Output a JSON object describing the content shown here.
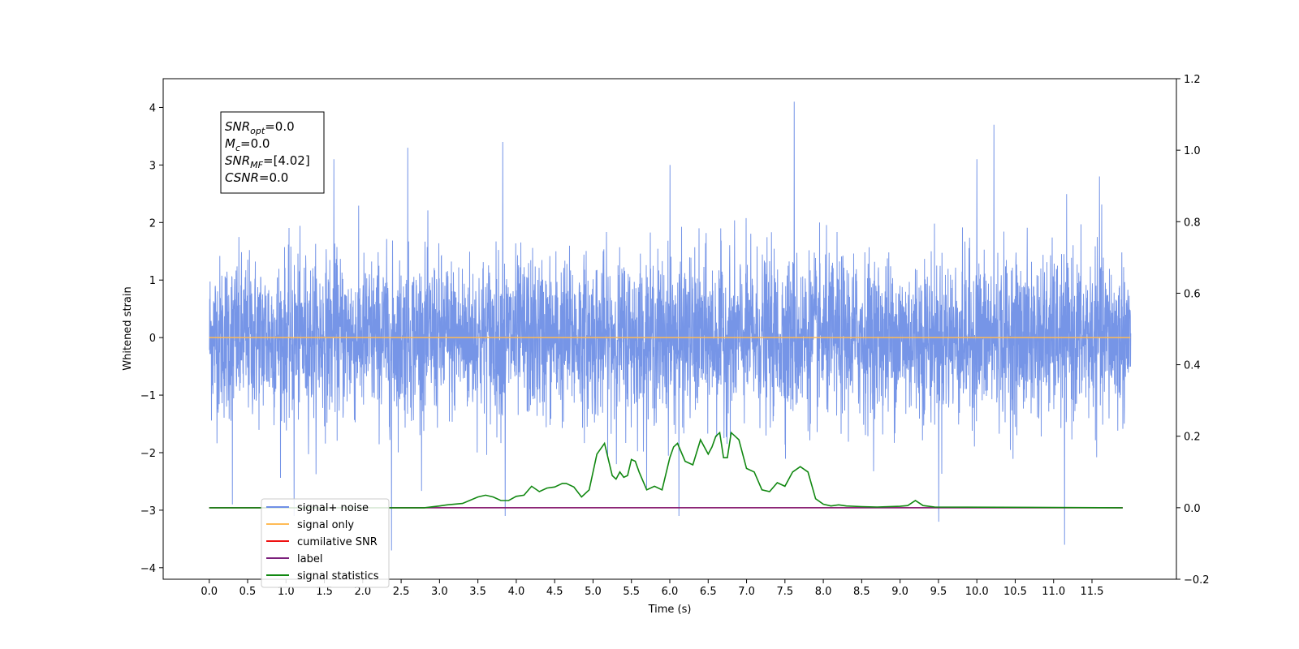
{
  "chart_data": {
    "type": "line",
    "xlabel": "Time (s)",
    "ylabel_left": "Whitened strain",
    "xlim": [
      -0.6,
      12.6
    ],
    "ylim_left": [
      -4.2,
      4.5
    ],
    "ylim_right": [
      -0.2,
      1.2
    ],
    "x_ticks": [
      0.0,
      0.5,
      1.0,
      1.5,
      2.0,
      2.5,
      3.0,
      3.5,
      4.0,
      4.5,
      5.0,
      5.5,
      6.0,
      6.5,
      7.0,
      7.5,
      8.0,
      8.5,
      9.0,
      9.5,
      10.0,
      10.5,
      11.0,
      11.5
    ],
    "x_tick_labels": [
      "0.0",
      "0.5",
      "1.0",
      "1.5",
      "2.0",
      "2.5",
      "3.0",
      "3.5",
      "4.0",
      "4.5",
      "5.0",
      "5.5",
      "6.0",
      "6.5",
      "7.0",
      "7.5",
      "8.0",
      "8.5",
      "9.0",
      "9.5",
      "10.0",
      "10.5",
      "11.0",
      "11.5"
    ],
    "y_left_ticks": [
      4,
      3,
      2,
      1,
      0,
      -1,
      -2,
      -3,
      -4
    ],
    "y_left_tick_labels": [
      "4",
      "3",
      "2",
      "1",
      "0",
      "−1",
      "−2",
      "−3",
      "−4"
    ],
    "y_right_ticks": [
      1.2,
      1.0,
      0.8,
      0.6,
      0.4,
      0.2,
      0.0,
      -0.2
    ],
    "y_right_tick_labels": [
      "1.2",
      "1.0",
      "0.8",
      "0.6",
      "0.4",
      "0.2",
      "0.0",
      "−0.2"
    ],
    "noise_envelope": {
      "x_range": [
        0.0,
        12.0
      ],
      "sigma": 0.7,
      "spikes": [
        [
          7.62,
          4.1
        ],
        [
          10.22,
          3.7
        ],
        [
          3.82,
          3.4
        ],
        [
          2.58,
          3.3
        ],
        [
          1.62,
          3.1
        ],
        [
          10.0,
          3.1
        ],
        [
          6.0,
          3.0
        ],
        [
          11.6,
          2.8
        ],
        [
          11.14,
          -3.6
        ],
        [
          2.37,
          -3.7
        ],
        [
          9.5,
          -3.2
        ],
        [
          3.85,
          -3.1
        ],
        [
          6.12,
          -3.1
        ],
        [
          1.1,
          -3.1
        ],
        [
          0.3,
          -2.9
        ]
      ]
    },
    "series": [
      {
        "name": "signal+ noise",
        "color": "#6f8fe6",
        "axis": "left",
        "kind": "noise"
      },
      {
        "name": "signal only",
        "color": "#ffbb55",
        "axis": "left",
        "kind": "flat",
        "y": 0.0
      },
      {
        "name": "cumilative SNR",
        "color": "#ee1111",
        "axis": "right",
        "kind": "flat",
        "y": 0.0
      },
      {
        "name": "label",
        "color": "#7b1f7b",
        "axis": "right",
        "kind": "flat",
        "y": 0.0
      },
      {
        "name": "signal statistics",
        "color": "#118811",
        "axis": "right",
        "kind": "line",
        "x": [
          0.0,
          2.8,
          3.0,
          3.1,
          3.3,
          3.5,
          3.6,
          3.7,
          3.8,
          3.9,
          4.0,
          4.1,
          4.2,
          4.3,
          4.4,
          4.5,
          4.6,
          4.65,
          4.75,
          4.85,
          4.95,
          5.05,
          5.15,
          5.25,
          5.3,
          5.35,
          5.4,
          5.45,
          5.5,
          5.55,
          5.6,
          5.7,
          5.8,
          5.9,
          6.0,
          6.05,
          6.1,
          6.2,
          6.3,
          6.4,
          6.5,
          6.55,
          6.6,
          6.65,
          6.7,
          6.75,
          6.8,
          6.85,
          6.9,
          7.0,
          7.1,
          7.2,
          7.3,
          7.4,
          7.5,
          7.6,
          7.7,
          7.8,
          7.9,
          8.0,
          8.1,
          8.2,
          8.3,
          8.5,
          8.7,
          9.0,
          9.1,
          9.2,
          9.3,
          9.45,
          11.9
        ],
        "y": [
          0.0,
          0.0,
          0.005,
          0.008,
          0.012,
          0.03,
          0.035,
          0.03,
          0.02,
          0.02,
          0.032,
          0.035,
          0.06,
          0.045,
          0.055,
          0.058,
          0.068,
          0.068,
          0.058,
          0.03,
          0.05,
          0.15,
          0.18,
          0.09,
          0.08,
          0.1,
          0.085,
          0.09,
          0.135,
          0.13,
          0.1,
          0.05,
          0.06,
          0.05,
          0.14,
          0.17,
          0.18,
          0.13,
          0.12,
          0.19,
          0.15,
          0.17,
          0.2,
          0.21,
          0.14,
          0.14,
          0.21,
          0.2,
          0.19,
          0.11,
          0.1,
          0.05,
          0.045,
          0.07,
          0.06,
          0.1,
          0.115,
          0.1,
          0.025,
          0.01,
          0.005,
          0.008,
          0.005,
          0.003,
          0.002,
          0.004,
          0.006,
          0.02,
          0.006,
          0.002,
          0.0
        ]
      }
    ],
    "legend_position": "lower-left",
    "info_box": {
      "position": "upper-left",
      "lines": [
        {
          "base": "SNR",
          "sub": "opt",
          "value": "=0.0"
        },
        {
          "base": "M",
          "sub": "c",
          "value": "=0.0"
        },
        {
          "base": "SNR",
          "sub": "MF",
          "value": "=[4.02]"
        },
        {
          "base": "CSNR",
          "sub": "",
          "value": "=0.0"
        }
      ]
    }
  }
}
